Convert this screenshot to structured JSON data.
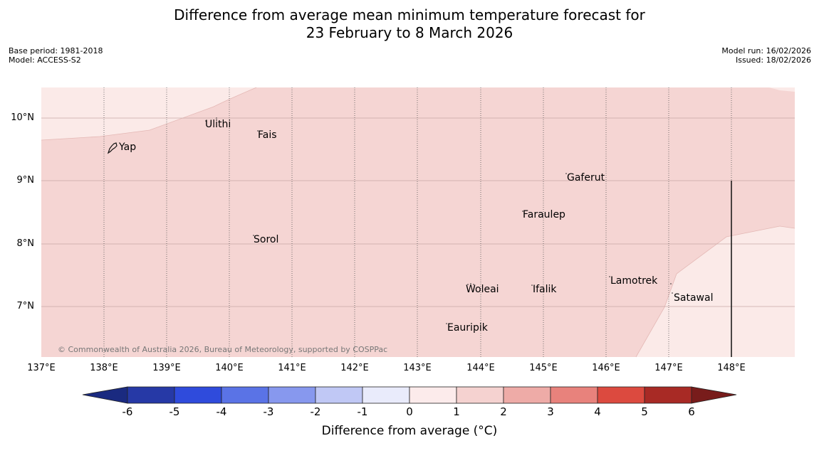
{
  "header": {
    "title_line1": "Difference from average mean minimum temperature forecast for",
    "title_line2": "23 February to 8 March 2026",
    "base_period": "Base period: 1981-2018",
    "model": "Model: ACCESS-S2",
    "model_run": "Model run: 16/02/2026",
    "issued": "Issued: 18/02/2026"
  },
  "map": {
    "lat_labels": [
      "10°N",
      "9°N",
      "8°N",
      "7°N"
    ],
    "lon_labels": [
      "137°E",
      "138°E",
      "139°E",
      "140°E",
      "141°E",
      "142°E",
      "143°E",
      "144°E",
      "145°E",
      "146°E",
      "147°E",
      "148°E"
    ],
    "places": [
      "Yap",
      "Ulithi",
      "Fais",
      "Gaferut",
      "Faraulep",
      "Sorol",
      "Lamotrek",
      "Woleai",
      "Ifalik",
      "Satawal",
      "Eauripik"
    ],
    "copyright": "© Commonwealth of Australia 2026, Bureau of Meteorology, supported by COSPPac",
    "colors": {
      "light_anomaly": "#fbeae8",
      "mid_anomaly": "#f5d5d3"
    }
  },
  "colorbar": {
    "tick_labels": [
      "-6",
      "-5",
      "-4",
      "-3",
      "-2",
      "-1",
      "0",
      "1",
      "2",
      "3",
      "4",
      "5",
      "6"
    ],
    "title": "Difference from average (°C)",
    "colors": [
      "#2639a6",
      "#2f4bdc",
      "#5a73e6",
      "#8798ee",
      "#c0c8f5",
      "#e9ebfb",
      "#fcebeb",
      "#f5d2d0",
      "#eeaba7",
      "#e8827c",
      "#dc4a3f",
      "#a82a25"
    ],
    "under_color": "#1a2a80",
    "over_color": "#781c1b"
  }
}
